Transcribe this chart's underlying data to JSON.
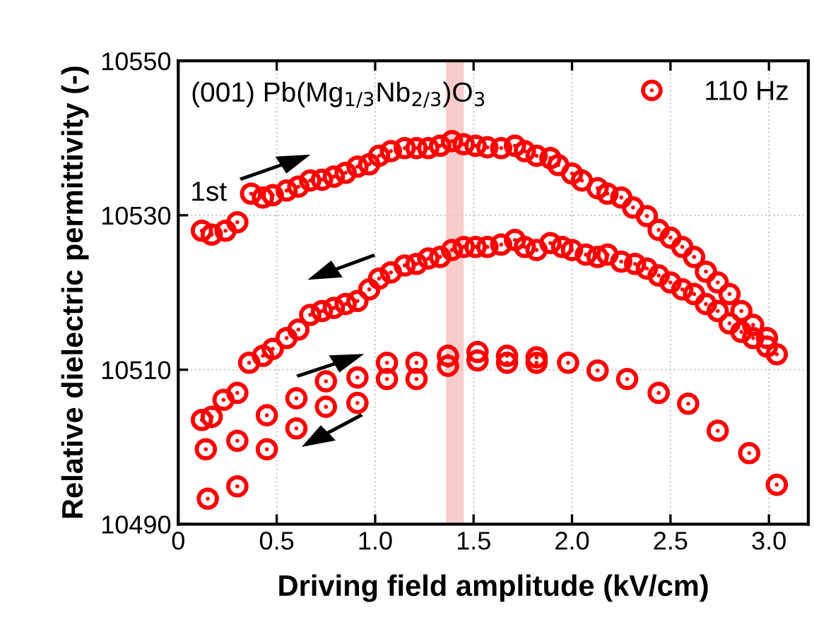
{
  "chart_data": {
    "type": "scatter",
    "xlabel": "Driving field amplitude (kV/cm)",
    "ylabel": "Relative dielectric permittivity (-)",
    "annotations": [
      "(001) Pb(Mg$_{1/3}$Nb$_{2/3}$)O$_{3}$",
      {
        "text": "1st",
        "x": 0.37,
        "y": 10532.8
      }
    ],
    "xlim": [
      0,
      3.2
    ],
    "xticks": [
      {
        "value": 0,
        "label": "0"
      },
      0.5,
      {
        "value": 1,
        "label": "1.0"
      },
      1.5,
      {
        "value": 2,
        "label": "2.0"
      },
      2.5,
      {
        "value": 3,
        "label": "3.0"
      }
    ],
    "ylim": [
      10490,
      10550
    ],
    "yticks": [
      10490,
      10510,
      10530,
      10550
    ],
    "grid": true,
    "legend": "top right",
    "marker": "circle",
    "bands": [
      {
        "axis": "x",
        "from": 1.36,
        "to": 1.45,
        "color": "#f6b8b8"
      }
    ],
    "series": [
      {
        "name": "110 Hz",
        "color": "#ff0000",
        "x": [
          0.12,
          0.17,
          0.24,
          0.3,
          0.37,
          0.43,
          0.48,
          0.55,
          0.61,
          0.67,
          0.73,
          0.79,
          0.85,
          0.91,
          0.97,
          1.02,
          1.08,
          1.15,
          1.21,
          1.27,
          1.33,
          1.39,
          1.45,
          1.51,
          1.57,
          1.64,
          1.71,
          1.76,
          1.82,
          1.89,
          1.93,
          2.0,
          2.05,
          2.13,
          2.18,
          2.25,
          2.31,
          2.38,
          2.44,
          2.5,
          2.56,
          2.62,
          2.68,
          2.74,
          2.8,
          2.86,
          2.92,
          2.99,
          3.04,
          0.12,
          0.17,
          0.23,
          0.3,
          0.36,
          0.43,
          0.48,
          0.55,
          0.61,
          0.67,
          0.73,
          0.79,
          0.85,
          0.91,
          0.97,
          1.02,
          1.08,
          1.15,
          1.21,
          1.27,
          1.33,
          1.39,
          1.45,
          1.51,
          1.57,
          1.64,
          1.71,
          1.76,
          1.82,
          1.89,
          1.95,
          2.0,
          2.07,
          2.13,
          2.18,
          2.25,
          2.32,
          2.38,
          2.44,
          2.5,
          2.56,
          2.62,
          2.68,
          2.74,
          2.8,
          2.86,
          2.92,
          2.99,
          0.15,
          0.3,
          0.14,
          0.3,
          0.45,
          0.45,
          0.6,
          0.6,
          0.75,
          0.75,
          0.91,
          0.91,
          1.06,
          1.06,
          1.21,
          1.21,
          1.37,
          1.37,
          1.52,
          1.52,
          1.67,
          1.67,
          1.82,
          1.82,
          1.98,
          2.13,
          2.28,
          2.44,
          2.59,
          2.74,
          2.9,
          3.04
        ],
        "values": [
          10528.0,
          10527.5,
          10528.0,
          10529.1,
          10532.8,
          10532.3,
          10532.6,
          10533.2,
          10533.7,
          10534.5,
          10534.6,
          10535.0,
          10535.5,
          10536.3,
          10536.6,
          10537.7,
          10538.3,
          10538.7,
          10538.7,
          10538.7,
          10539.0,
          10539.6,
          10539.2,
          10539.0,
          10538.8,
          10538.7,
          10539.0,
          10538.3,
          10537.7,
          10537.4,
          10536.5,
          10535.4,
          10534.5,
          10533.5,
          10532.8,
          10532.3,
          10531.0,
          10529.9,
          10528.1,
          10527.1,
          10525.9,
          10524.6,
          10522.7,
          10521.3,
          10519.8,
          10517.6,
          10515.8,
          10514.1,
          10512.0,
          10503.5,
          10503.9,
          10506.1,
          10507.0,
          10510.9,
          10511.8,
          10512.7,
          10514.1,
          10515.2,
          10517.1,
          10517.6,
          10518.0,
          10518.5,
          10518.9,
          10520.4,
          10521.8,
          10522.6,
          10523.5,
          10523.7,
          10524.4,
          10524.6,
          10525.5,
          10525.9,
          10525.9,
          10525.9,
          10526.2,
          10526.8,
          10525.9,
          10525.5,
          10526.4,
          10525.9,
          10525.5,
          10524.9,
          10524.6,
          10524.9,
          10524.0,
          10523.7,
          10523.1,
          10522.2,
          10521.3,
          10520.4,
          10519.8,
          10518.5,
          10517.6,
          10516.0,
          10514.9,
          10514.1,
          10513.0,
          10493.3,
          10494.9,
          10499.7,
          10500.8,
          10499.7,
          10504.1,
          10502.4,
          10506.3,
          10505.2,
          10508.5,
          10505.7,
          10509.0,
          10508.8,
          10510.9,
          10508.8,
          10510.9,
          10510.5,
          10511.8,
          10511.2,
          10512.3,
          10510.9,
          10511.8,
          10510.9,
          10511.6,
          10510.9,
          10509.9,
          10508.8,
          10507.0,
          10505.6,
          10502.1,
          10499.2,
          10495.1
        ]
      }
    ]
  }
}
